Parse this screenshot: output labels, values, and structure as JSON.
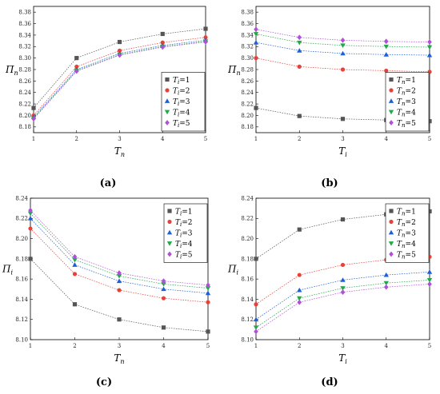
{
  "chart_data": [
    {
      "type": "line",
      "caption": "(a)",
      "ylabel": {
        "base": "Π",
        "sub": "n"
      },
      "xlabel": {
        "base": "T",
        "sub": "n"
      },
      "legend_var": {
        "base": "T",
        "sub": "i"
      },
      "legend_position": "bottom-right",
      "x": [
        1,
        2,
        3,
        4,
        5
      ],
      "xticks": [
        "1",
        "2",
        "3",
        "4",
        "5"
      ],
      "ylim": [
        8.17,
        8.39
      ],
      "yticks": [
        "8.18",
        "8.20",
        "8.22",
        "8.24",
        "8.26",
        "8.28",
        "8.30",
        "8.32",
        "8.34",
        "8.36",
        "8.38"
      ],
      "series": [
        {
          "name": "=1",
          "values": [
            8.213,
            8.3,
            8.328,
            8.342,
            8.351
          ]
        },
        {
          "name": "=2",
          "values": [
            8.2,
            8.285,
            8.313,
            8.327,
            8.336
          ]
        },
        {
          "name": "=3",
          "values": [
            8.197,
            8.28,
            8.308,
            8.322,
            8.331
          ]
        },
        {
          "name": "=4",
          "values": [
            8.195,
            8.278,
            8.306,
            8.32,
            8.329
          ]
        },
        {
          "name": "=5",
          "values": [
            8.194,
            8.277,
            8.305,
            8.319,
            8.328
          ]
        }
      ]
    },
    {
      "type": "line",
      "caption": "(b)",
      "ylabel": {
        "base": "Π",
        "sub": "n"
      },
      "xlabel": {
        "base": "T",
        "sub": "i"
      },
      "legend_var": {
        "base": "T",
        "sub": "n"
      },
      "legend_position": "bottom-right",
      "x": [
        1,
        2,
        3,
        4,
        5
      ],
      "xticks": [
        "1",
        "2",
        "3",
        "4",
        "5"
      ],
      "ylim": [
        8.17,
        8.39
      ],
      "yticks": [
        "8.18",
        "8.20",
        "8.22",
        "8.24",
        "8.26",
        "8.28",
        "8.30",
        "8.32",
        "8.34",
        "8.36",
        "8.38"
      ],
      "series": [
        {
          "name": "=1",
          "values": [
            8.213,
            8.199,
            8.194,
            8.192,
            8.19
          ]
        },
        {
          "name": "=2",
          "values": [
            8.3,
            8.285,
            8.28,
            8.278,
            8.276
          ]
        },
        {
          "name": "=3",
          "values": [
            8.327,
            8.313,
            8.308,
            8.306,
            8.305
          ]
        },
        {
          "name": "=4",
          "values": [
            8.342,
            8.327,
            8.322,
            8.32,
            8.319
          ]
        },
        {
          "name": "=5",
          "values": [
            8.35,
            8.336,
            8.331,
            8.329,
            8.328
          ]
        }
      ]
    },
    {
      "type": "line",
      "caption": "(c)",
      "ylabel": {
        "base": "Π",
        "sub": "i"
      },
      "xlabel": {
        "base": "T",
        "sub": "n"
      },
      "legend_var": {
        "base": "T",
        "sub": "i"
      },
      "legend_position": "top-right",
      "x": [
        1,
        2,
        3,
        4,
        5
      ],
      "xticks": [
        "1",
        "2",
        "3",
        "4",
        "5"
      ],
      "ylim": [
        8.1,
        8.24
      ],
      "yticks": [
        "8.10",
        "8.12",
        "8.14",
        "8.16",
        "8.18",
        "8.20",
        "8.22",
        "8.24"
      ],
      "series": [
        {
          "name": "=1",
          "values": [
            8.18,
            8.135,
            8.12,
            8.112,
            8.108
          ]
        },
        {
          "name": "=2",
          "values": [
            8.21,
            8.165,
            8.149,
            8.141,
            8.137
          ]
        },
        {
          "name": "=3",
          "values": [
            8.22,
            8.174,
            8.158,
            8.15,
            8.146
          ]
        },
        {
          "name": "=4",
          "values": [
            8.225,
            8.179,
            8.163,
            8.155,
            8.151
          ]
        },
        {
          "name": "=5",
          "values": [
            8.228,
            8.182,
            8.166,
            8.158,
            8.154
          ]
        }
      ]
    },
    {
      "type": "line",
      "caption": "(d)",
      "ylabel": {
        "base": "Π",
        "sub": "i"
      },
      "xlabel": {
        "base": "T",
        "sub": "i"
      },
      "legend_var": {
        "base": "T",
        "sub": "n"
      },
      "legend_position": "top-right",
      "x": [
        1,
        2,
        3,
        4,
        5
      ],
      "xticks": [
        "1",
        "2",
        "3",
        "4",
        "5"
      ],
      "ylim": [
        8.1,
        8.24
      ],
      "yticks": [
        "8.10",
        "8.12",
        "8.14",
        "8.16",
        "8.18",
        "8.20",
        "8.22",
        "8.24"
      ],
      "series": [
        {
          "name": "=1",
          "values": [
            8.18,
            8.209,
            8.219,
            8.224,
            8.227
          ]
        },
        {
          "name": "=2",
          "values": [
            8.135,
            8.164,
            8.174,
            8.179,
            8.182
          ]
        },
        {
          "name": "=3",
          "values": [
            8.12,
            8.149,
            8.159,
            8.164,
            8.167
          ]
        },
        {
          "name": "=4",
          "values": [
            8.112,
            8.141,
            8.151,
            8.156,
            8.159
          ]
        },
        {
          "name": "=5",
          "values": [
            8.108,
            8.137,
            8.147,
            8.152,
            8.155
          ]
        }
      ]
    }
  ],
  "series_style": {
    "colors": [
      "#555555",
      "#e8413a",
      "#1f5fd6",
      "#22a84a",
      "#b04fd8"
    ],
    "markers": [
      "square",
      "circle",
      "triangle-up",
      "triangle-down",
      "diamond"
    ]
  }
}
